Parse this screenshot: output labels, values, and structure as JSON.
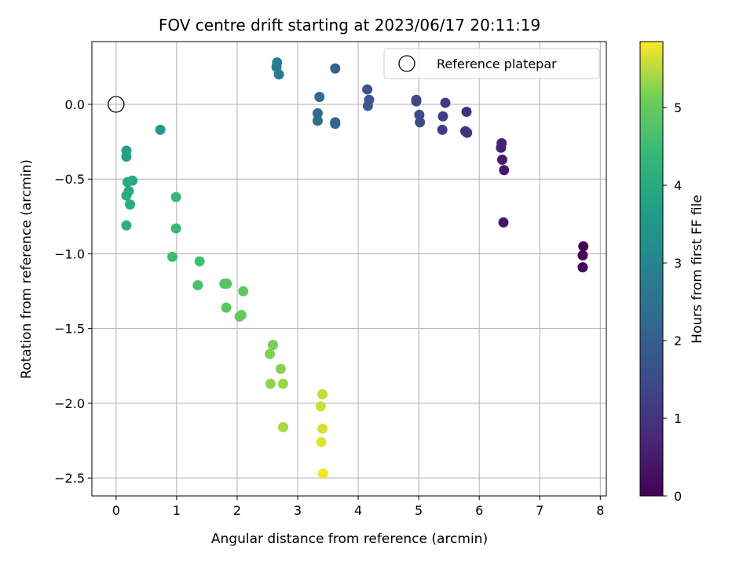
{
  "chart_data": {
    "type": "scatter",
    "title": "FOV centre drift starting at 2023/06/17 20:11:19",
    "xlabel": "Angular distance from reference (arcmin)",
    "ylabel": "Rotation from reference (arcmin)",
    "xlim": [
      -0.4,
      8.1
    ],
    "ylim": [
      -2.62,
      0.42
    ],
    "xticks": [
      0,
      1,
      2,
      3,
      4,
      5,
      6,
      7,
      8
    ],
    "xtick_labels": [
      "0",
      "1",
      "2",
      "3",
      "4",
      "5",
      "6",
      "7",
      "8"
    ],
    "yticks": [
      0.0,
      -0.5,
      -1.0,
      -1.5,
      -2.0,
      -2.5
    ],
    "ytick_labels": [
      "0.0",
      "−0.5",
      "−1.0",
      "−1.5",
      "−2.0",
      "−2.5"
    ],
    "grid": true,
    "legend": {
      "location": "top-right",
      "entries": [
        "Reference platepar"
      ]
    },
    "reference_point": {
      "x": 0,
      "y": 0
    },
    "colorbar": {
      "label": "Hours from first FF file",
      "range": [
        0,
        5.85
      ],
      "ticks": [
        0,
        1,
        2,
        3,
        4,
        5
      ],
      "tick_labels": [
        "0",
        "1",
        "2",
        "3",
        "4",
        "5"
      ],
      "colormap": "viridis"
    },
    "points": [
      {
        "x": 7.72,
        "y": -0.95,
        "c": 0.0
      },
      {
        "x": 7.71,
        "y": -1.01,
        "c": 0.02
      },
      {
        "x": 7.71,
        "y": -1.09,
        "c": 0.04
      },
      {
        "x": 6.4,
        "y": -0.79,
        "c": 0.35
      },
      {
        "x": 6.41,
        "y": -0.44,
        "c": 0.45
      },
      {
        "x": 6.38,
        "y": -0.37,
        "c": 0.5
      },
      {
        "x": 6.36,
        "y": -0.29,
        "c": 0.55
      },
      {
        "x": 6.37,
        "y": -0.26,
        "c": 0.6
      },
      {
        "x": 5.79,
        "y": -0.05,
        "c": 0.9
      },
      {
        "x": 5.77,
        "y": -0.18,
        "c": 0.95
      },
      {
        "x": 5.8,
        "y": -0.19,
        "c": 1.0
      },
      {
        "x": 5.44,
        "y": 0.01,
        "c": 1.15
      },
      {
        "x": 5.4,
        "y": -0.08,
        "c": 1.2
      },
      {
        "x": 5.39,
        "y": -0.17,
        "c": 1.25
      },
      {
        "x": 4.96,
        "y": 0.03,
        "c": 1.4
      },
      {
        "x": 4.96,
        "y": 0.02,
        "c": 1.45
      },
      {
        "x": 5.01,
        "y": -0.07,
        "c": 1.5
      },
      {
        "x": 5.02,
        "y": -0.12,
        "c": 1.55
      },
      {
        "x": 4.15,
        "y": 0.1,
        "c": 1.75
      },
      {
        "x": 4.18,
        "y": 0.03,
        "c": 1.8
      },
      {
        "x": 4.16,
        "y": -0.01,
        "c": 1.85
      },
      {
        "x": 3.62,
        "y": 0.24,
        "c": 2.05
      },
      {
        "x": 3.62,
        "y": -0.12,
        "c": 2.1
      },
      {
        "x": 3.62,
        "y": -0.13,
        "c": 2.15
      },
      {
        "x": 3.36,
        "y": 0.05,
        "c": 2.3
      },
      {
        "x": 3.33,
        "y": -0.06,
        "c": 2.35
      },
      {
        "x": 3.33,
        "y": -0.11,
        "c": 2.4
      },
      {
        "x": 2.66,
        "y": 0.28,
        "c": 2.75
      },
      {
        "x": 2.65,
        "y": 0.25,
        "c": 2.8
      },
      {
        "x": 2.69,
        "y": 0.2,
        "c": 2.85
      },
      {
        "x": 0.73,
        "y": -0.17,
        "c": 3.55
      },
      {
        "x": 0.17,
        "y": -0.31,
        "c": 3.75
      },
      {
        "x": 0.17,
        "y": -0.35,
        "c": 3.8
      },
      {
        "x": 0.27,
        "y": -0.51,
        "c": 3.9
      },
      {
        "x": 0.19,
        "y": -0.52,
        "c": 3.95
      },
      {
        "x": 0.21,
        "y": -0.58,
        "c": 4.0
      },
      {
        "x": 0.17,
        "y": -0.61,
        "c": 4.05
      },
      {
        "x": 0.23,
        "y": -0.67,
        "c": 4.1
      },
      {
        "x": 0.17,
        "y": -0.81,
        "c": 4.15
      },
      {
        "x": 0.99,
        "y": -0.62,
        "c": 4.4
      },
      {
        "x": 0.99,
        "y": -0.83,
        "c": 4.45
      },
      {
        "x": 0.93,
        "y": -1.02,
        "c": 4.5
      },
      {
        "x": 1.38,
        "y": -1.05,
        "c": 4.6
      },
      {
        "x": 1.35,
        "y": -1.21,
        "c": 4.65
      },
      {
        "x": 1.79,
        "y": -1.2,
        "c": 4.75
      },
      {
        "x": 1.83,
        "y": -1.2,
        "c": 4.8
      },
      {
        "x": 1.82,
        "y": -1.36,
        "c": 4.85
      },
      {
        "x": 2.1,
        "y": -1.25,
        "c": 4.9
      },
      {
        "x": 2.07,
        "y": -1.41,
        "c": 4.95
      },
      {
        "x": 2.04,
        "y": -1.42,
        "c": 5.0
      },
      {
        "x": 2.59,
        "y": -1.61,
        "c": 5.15
      },
      {
        "x": 2.54,
        "y": -1.67,
        "c": 5.2
      },
      {
        "x": 2.72,
        "y": -1.77,
        "c": 5.25
      },
      {
        "x": 2.55,
        "y": -1.87,
        "c": 5.3
      },
      {
        "x": 2.76,
        "y": -1.87,
        "c": 5.35
      },
      {
        "x": 2.76,
        "y": -2.16,
        "c": 5.4
      },
      {
        "x": 3.41,
        "y": -1.94,
        "c": 5.55
      },
      {
        "x": 3.38,
        "y": -2.02,
        "c": 5.6
      },
      {
        "x": 3.41,
        "y": -2.17,
        "c": 5.65
      },
      {
        "x": 3.39,
        "y": -2.26,
        "c": 5.7
      },
      {
        "x": 3.42,
        "y": -2.47,
        "c": 5.8
      }
    ]
  }
}
